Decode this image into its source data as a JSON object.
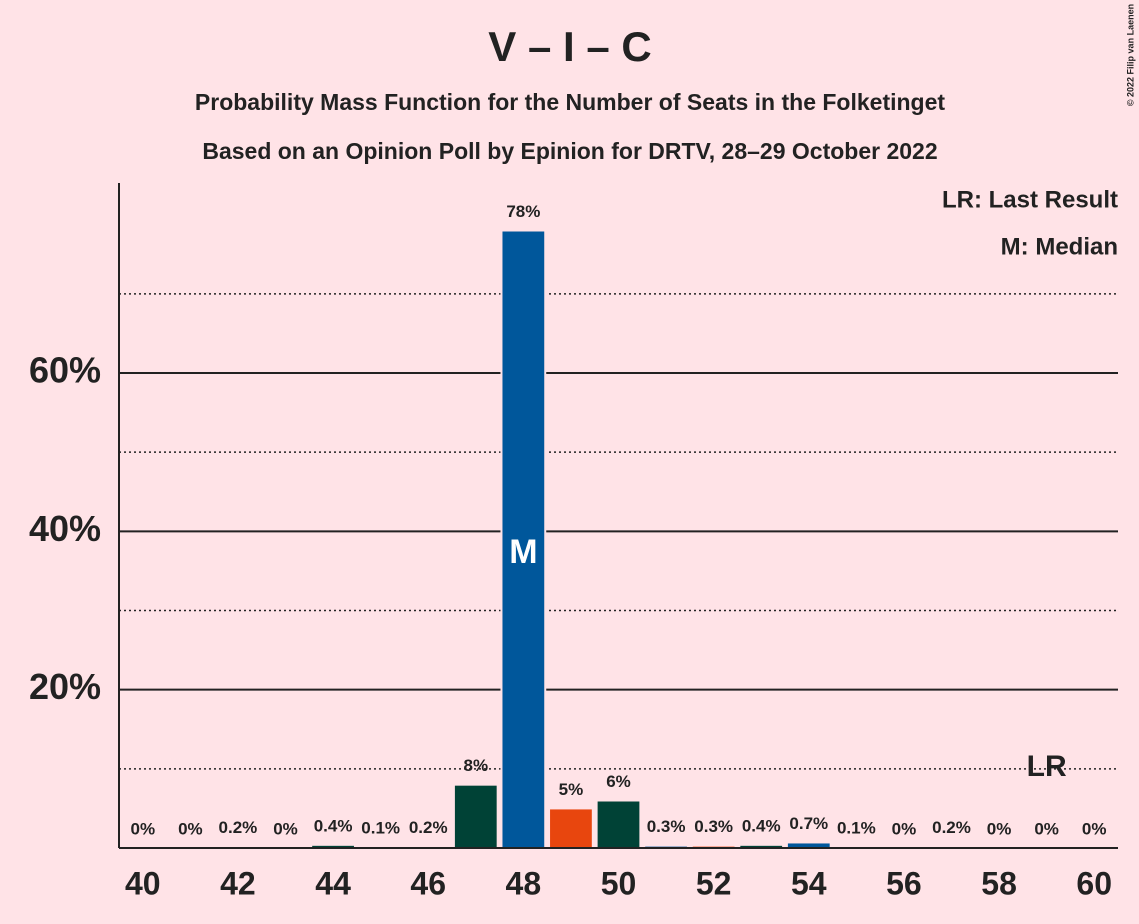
{
  "chart_data": {
    "type": "bar",
    "title": "V – I – C",
    "subtitle": [
      "Probability Mass Function for the Number of Seats in the Folketinget",
      "Based on an Opinion Poll by Epinion for DRTV, 28–29 October 2022"
    ],
    "x": [
      40,
      41,
      42,
      43,
      44,
      45,
      46,
      47,
      48,
      49,
      50,
      51,
      52,
      53,
      54,
      55,
      56,
      57,
      58,
      59,
      60
    ],
    "values": [
      0,
      0,
      0.2,
      0,
      0.4,
      0.1,
      0.2,
      8,
      78,
      5,
      6,
      0.3,
      0.3,
      0.4,
      0.7,
      0.1,
      0,
      0.2,
      0,
      0,
      0
    ],
    "value_labels": [
      "0%",
      "0%",
      "0.2%",
      "0%",
      "0.4%",
      "0.1%",
      "0.2%",
      "8%",
      "78%",
      "5%",
      "6%",
      "0.3%",
      "0.3%",
      "0.4%",
      "0.7%",
      "0.1%",
      "0%",
      "0.2%",
      "0%",
      "0%",
      "0%"
    ],
    "colors": [
      "#00579b",
      "#004236",
      "#e8460e",
      "#00579b",
      "#004236",
      "#e8460e",
      "#00579b",
      "#004236",
      "#00579b",
      "#e8460e",
      "#004236",
      "#00579b",
      "#e8460e",
      "#004236",
      "#00579b",
      "#e8460e",
      "#004236",
      "#00579b",
      "#e8460e",
      "#004236",
      "#00579b"
    ],
    "xlim": [
      39.5,
      60.5
    ],
    "xticks": [
      40,
      42,
      44,
      46,
      48,
      50,
      52,
      54,
      56,
      58,
      60
    ],
    "ylim": [
      0,
      84
    ],
    "yticks": [
      {
        "value": 20,
        "label": "20%"
      },
      {
        "value": 40,
        "label": "40%"
      },
      {
        "value": 60,
        "label": "60%"
      }
    ],
    "minor_yticks": [
      10,
      30,
      50,
      70
    ],
    "grid": true,
    "median": {
      "x": 48,
      "label": "M"
    },
    "last_result": {
      "x": 59,
      "label": "LR"
    },
    "legend": [
      "LR: Last Result",
      "M: Median"
    ],
    "copyright": "© 2022 Filip van Laenen"
  }
}
